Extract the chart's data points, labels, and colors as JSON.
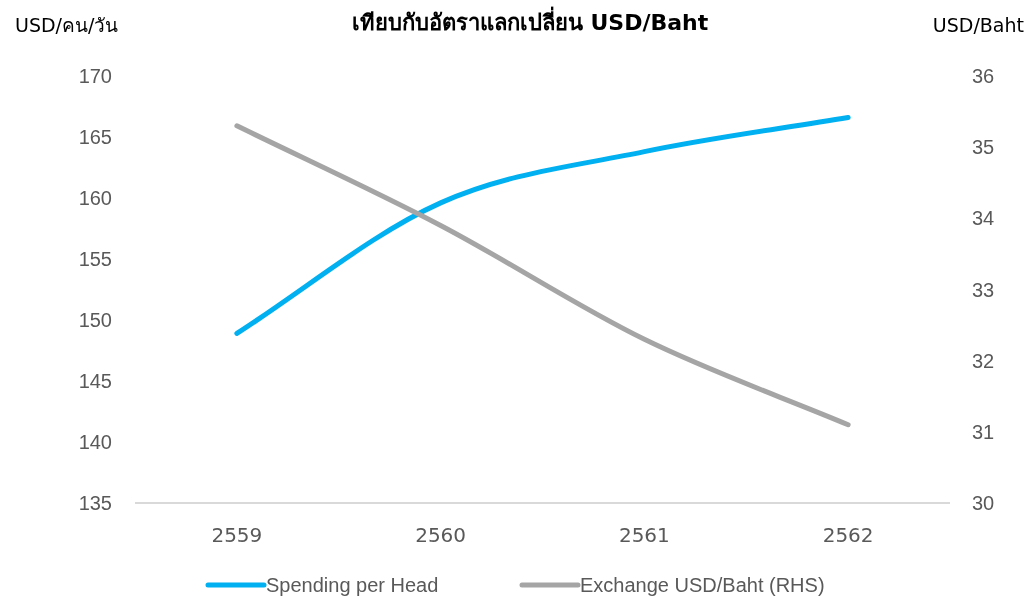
{
  "chart_data": {
    "type": "line",
    "title": "เทียบกับอัตราแลกเปลี่ยน USD/Baht",
    "ylabel": "USD/คน/วัน",
    "y2label": "USD/Baht",
    "categories": [
      "2559",
      "2560",
      "2561",
      "2562"
    ],
    "series": [
      {
        "name": "Spending per Head",
        "color": "#00b0f0",
        "values": [
          148.9,
          159.6,
          163.8,
          166.6
        ]
      },
      {
        "name": "Exchange USD/Baht (RHS)",
        "color": "#a5a5a5",
        "axis": "y2",
        "values": [
          35.3,
          33.9,
          32.3,
          31.1
        ]
      }
    ],
    "ylim": [
      135,
      170
    ],
    "yticks": [
      135,
      140,
      145,
      150,
      155,
      160,
      165,
      170
    ],
    "y2lim": [
      30,
      36
    ],
    "y2ticks": [
      30,
      31,
      32,
      33,
      34,
      35,
      36
    ],
    "legend": "bottom",
    "grid": false,
    "marker": "none",
    "line_style": "solid"
  }
}
